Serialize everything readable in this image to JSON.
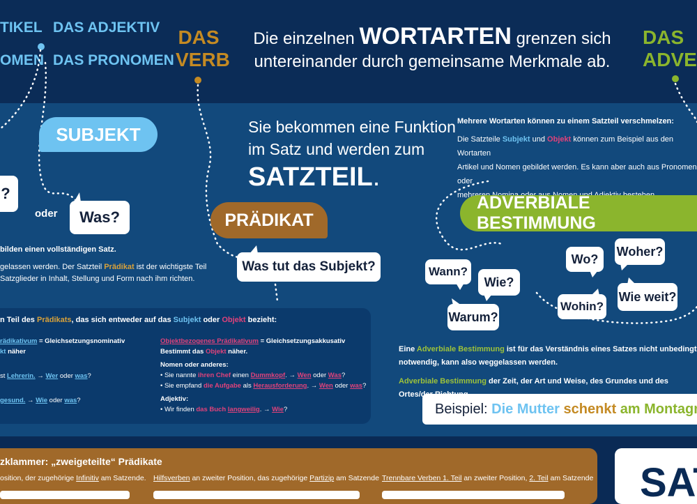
{
  "top": {
    "artikel": "TIKEL",
    "adjektiv": "DAS ADJEKTIV",
    "nomen": "OMEN",
    "pronomen": "DAS PRONOMEN",
    "verb_line1": "DAS",
    "verb_line2": "VERB",
    "headline_pre": "Die einzelnen",
    "headline_big": "WORTARTEN",
    "headline_post": "grenzen sich",
    "headline_line2": "untereinander durch gemeinsame Merkmale ab.",
    "adverb_line1": "DAS",
    "adverb_line2": "ADVERB"
  },
  "center": {
    "line1": "Sie bekommen eine Funktion",
    "line2": "im Satz und werden zum",
    "satzteil": "SATZTEIL",
    "period": "."
  },
  "subjekt": {
    "label": "SUBJEKT",
    "question_partial": "?",
    "oder": "oder",
    "was": "Was?",
    "text1": "bilden einen vollständigen Satz.",
    "text2_pre": "gelassen werden. Der Satzteil",
    "text2_praedikat": "Prädikat",
    "text2_post": "ist der wichtigste Teil",
    "text3": "Satzglieder in Inhalt, Stellung und Form nach ihm richten."
  },
  "praedikat": {
    "label": "PRÄDIKAT",
    "question": "Was tut das Subjekt?"
  },
  "verschmelzen": {
    "title": "Mehrere Wortarten können zu einem Satzteil verschmelzen:",
    "l1_pre": "Die Satzteile",
    "l1_subjekt": "Subjekt",
    "l1_und": "und",
    "l1_objekt": "Objekt",
    "l1_post": "können zum Beispiel aus den Wortarten",
    "l2": "Artikel und Nomen gebildet werden. Es kann aber auch aus Pronomen oder",
    "l3": "mehreren Nomina oder aus Nomen und Adjektiv bestehen."
  },
  "adverbiale": {
    "label": "ADVERBIALE BESTIMMUNG",
    "questions": [
      "Wann?",
      "Wie?",
      "Warum?",
      "Wo?",
      "Woher?",
      "Wohin?",
      "Wie weit?"
    ],
    "t1_pre": "Eine",
    "t1_term": "Adverbiale Bestimmung",
    "t1_post": "ist für das Verständnis eines Satzes nicht unbedingt",
    "t2": "notwendig, kann also weggelassen werden.",
    "t3_term": "Adverbiale Bestimmung",
    "t3_post": "der Zeit, der Art und Weise, des Grundes und des Ortes/der Richtung.",
    "beispiel_pre": "Beispiel:",
    "beispiel_subj": "Die Mutter",
    "beispiel_verb": "schenkt",
    "beispiel_adv": "am Montagmorg"
  },
  "praedikativ": {
    "intro_pre": "n Teil des",
    "intro_praed": "Prädikats",
    "intro_mid": ", das sich entweder auf das",
    "intro_subj": "Subjekt",
    "intro_oder": "oder",
    "intro_obj": "Objekt",
    "intro_post": "bezieht:",
    "left_h1_term": "rädikativum",
    "left_h1_post": "= Gleichsetzungsnominativ",
    "left_h2_term": "kt",
    "left_h2_post": "näher",
    "left_ex1_pre": "st",
    "left_ex1_term": "Lehrerin.",
    "left_ex1_arrow": " → ",
    "left_ex1_wer": "Wer",
    "left_ex1_oder": "oder",
    "left_ex1_was": "was",
    "left_ex1_q": "?",
    "left_ex2_term": "gesund.",
    "left_ex2_arrow": " → ",
    "left_ex2_wie": "Wie",
    "left_ex2_oder": "oder",
    "left_ex2_was": "was",
    "left_ex2_q": "?",
    "right_h1_term": "Objektbezogenes Prädikativum",
    "right_h1_post": "= Gleichsetzungsakkusativ",
    "right_h2_pre": "Bestimmt das",
    "right_h2_obj": "Objekt",
    "right_h2_post": "näher.",
    "right_sub1": "Nomen oder anderes:",
    "right_b1_pre": "• Sie nannte",
    "right_b1_a": "ihren Chef",
    "right_b1_mid": "einen",
    "right_b1_b": "Dummkopf",
    "right_b1_arrow": ". → ",
    "right_b1_wen": "Wen",
    "right_b1_oder": "oder",
    "right_b1_was": "Was",
    "right_b1_q": "?",
    "right_b2_pre": "• Sie empfand",
    "right_b2_a": "die Aufgabe",
    "right_b2_mid": "als",
    "right_b2_b": "Herausforderung",
    "right_b2_arrow": ". → ",
    "right_b2_wen": "Wen",
    "right_b2_oder": "oder",
    "right_b2_was": "was",
    "right_b2_q": "?",
    "right_sub2": "Adjektiv:",
    "right_b3_pre": "• Wir finden",
    "right_b3_a": "das Buch",
    "right_b3_b": "langweilig",
    "right_b3_arrow": ". → ",
    "right_b3_wie": "Wie",
    "right_b3_q": "?"
  },
  "klammer": {
    "title": "zklammer: „zweigeteilte“ Prädikate",
    "c1_pre": "osition, der zugehörige",
    "c1_term": "Infinitiv",
    "c1_post": "am Satzende.",
    "c2_term": "Hilfsverben",
    "c2_mid": "an zweiter Position, das zugehörige",
    "c2_term2": "Partizip",
    "c2_post": "am Satzende",
    "c3_term": "Trennbare Verben 1. Teil",
    "c3_mid": "an zweiter Position,",
    "c3_term2": "2. Teil",
    "c3_post": "am Satzende"
  },
  "satz_box": {
    "text": "SAT"
  },
  "colors": {
    "navy": "#0a2a55",
    "panel": "#12497c",
    "light_blue": "#6ec3f1",
    "gold": "#c48a23",
    "green": "#8bb52d",
    "pink": "#e0427b"
  }
}
